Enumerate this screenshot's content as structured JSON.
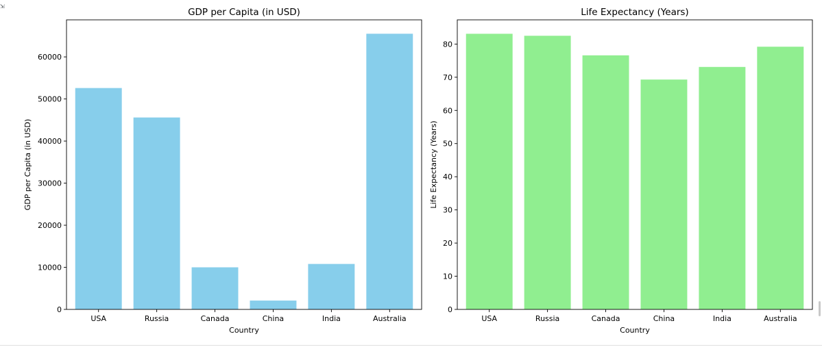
{
  "output_toggle": {
    "icon": "output-expand-icon",
    "glyph": "⇲"
  },
  "chart_data": [
    {
      "type": "bar",
      "title": "GDP per Capita (in USD)",
      "xlabel": "Country",
      "ylabel": "GDP per Capita (in USD)",
      "categories": [
        "USA",
        "Russia",
        "Canada",
        "China",
        "India",
        "Australia"
      ],
      "values": [
        52600,
        45600,
        10000,
        2100,
        10800,
        65500
      ],
      "ylim": [
        0,
        68800
      ],
      "yticks": [
        0,
        10000,
        20000,
        30000,
        40000,
        50000,
        60000
      ],
      "color": "#87ceeb",
      "grid": false,
      "legend": "none"
    },
    {
      "type": "bar",
      "title": "Life Expectancy (Years)",
      "xlabel": "Country",
      "ylabel": "Life Expectancy (Years)",
      "categories": [
        "USA",
        "Russia",
        "Canada",
        "China",
        "India",
        "Australia"
      ],
      "values": [
        83.1,
        82.5,
        76.6,
        69.3,
        73.1,
        79.2
      ],
      "ylim": [
        0,
        87.3
      ],
      "yticks": [
        0,
        10,
        20,
        30,
        40,
        50,
        60,
        70,
        80
      ],
      "color": "#90ee90",
      "grid": false,
      "legend": "none"
    }
  ]
}
